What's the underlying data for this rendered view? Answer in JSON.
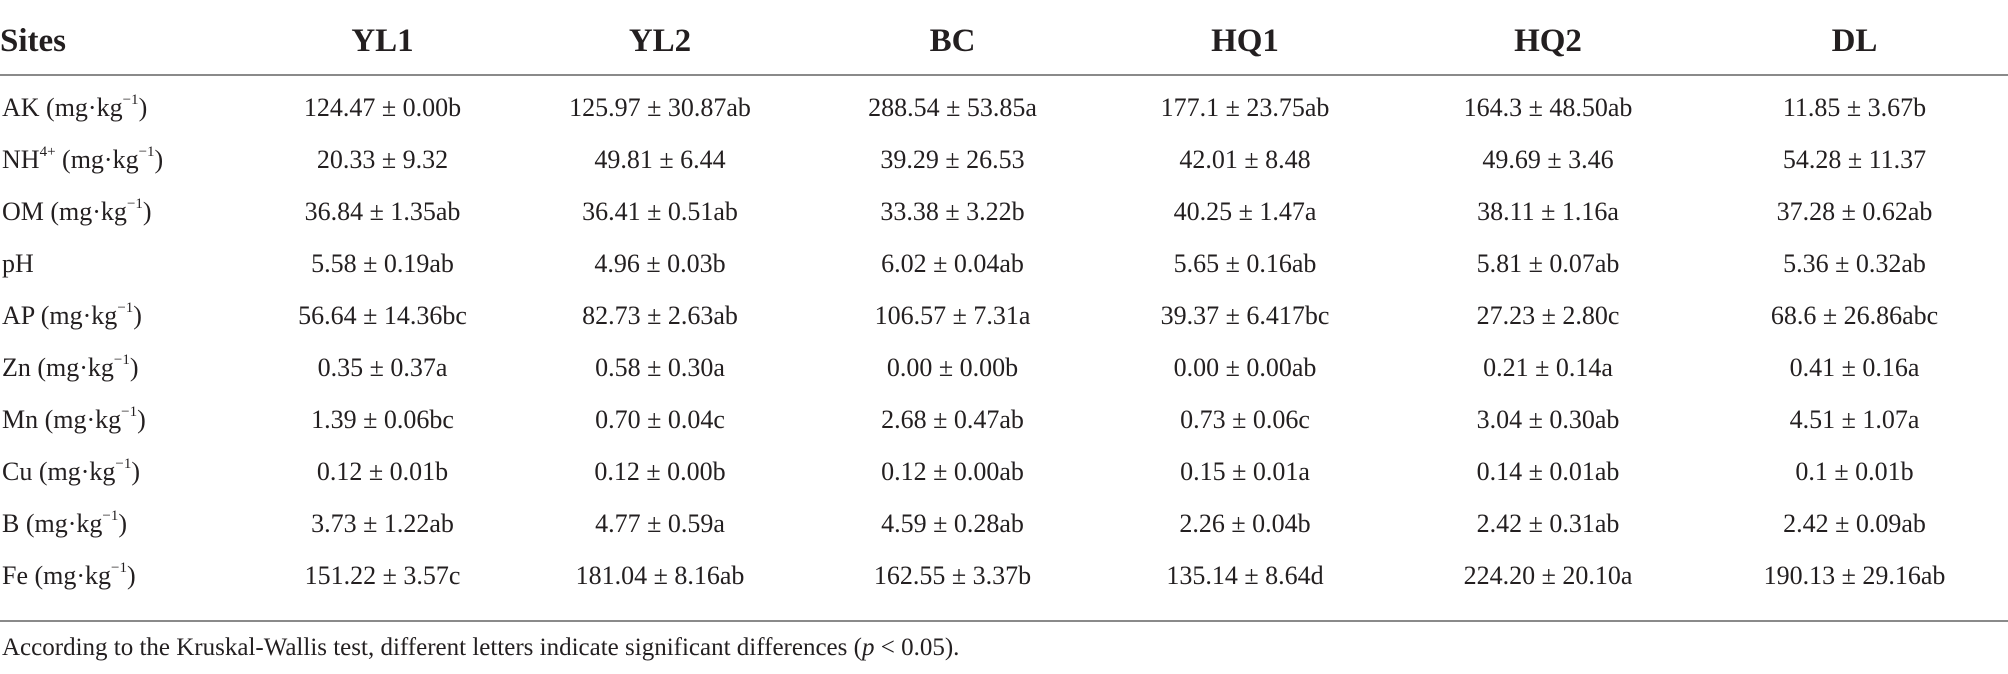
{
  "table": {
    "headers": [
      "Sites",
      "YL1",
      "YL2",
      "BC",
      "HQ1",
      "HQ2",
      "DL"
    ],
    "rows": [
      {
        "label_main": "AK (mg·kg",
        "label_sup": "−1",
        "label_tail": ")",
        "values": [
          "124.47 ± 0.00b",
          "125.97 ± 30.87ab",
          "288.54 ± 53.85a",
          "177.1 ± 23.75ab",
          "164.3 ± 48.50ab",
          "11.85 ± 3.67b"
        ]
      },
      {
        "label_main": "NH",
        "label_sup": "4+",
        "label_tail": " (mg·kg",
        "label_sup2": "−1",
        "label_tail2": ")",
        "values": [
          "20.33 ± 9.32",
          "49.81 ± 6.44",
          "39.29 ± 26.53",
          "42.01 ± 8.48",
          "49.69 ± 3.46",
          "54.28 ± 11.37"
        ]
      },
      {
        "label_main": "OM (mg·kg",
        "label_sup": "−1",
        "label_tail": ")",
        "values": [
          "36.84 ± 1.35ab",
          "36.41 ± 0.51ab",
          "33.38 ± 3.22b",
          "40.25 ± 1.47a",
          "38.11 ± 1.16a",
          "37.28 ± 0.62ab"
        ]
      },
      {
        "label_main": "pH",
        "label_sup": "",
        "label_tail": "",
        "values": [
          "5.58 ± 0.19ab",
          "4.96 ± 0.03b",
          "6.02 ± 0.04ab",
          "5.65 ± 0.16ab",
          "5.81 ± 0.07ab",
          "5.36 ± 0.32ab"
        ]
      },
      {
        "label_main": "AP (mg·kg",
        "label_sup": "−1",
        "label_tail": ")",
        "values": [
          "56.64 ± 14.36bc",
          "82.73 ± 2.63ab",
          "106.57 ± 7.31a",
          "39.37 ± 6.417bc",
          "27.23 ± 2.80c",
          "68.6 ± 26.86abc"
        ]
      },
      {
        "label_main": "Zn (mg·kg",
        "label_sup": "−1",
        "label_tail": ")",
        "values": [
          "0.35 ± 0.37a",
          "0.58 ± 0.30a",
          "0.00 ± 0.00b",
          "0.00 ± 0.00ab",
          "0.21 ± 0.14a",
          "0.41 ± 0.16a"
        ]
      },
      {
        "label_main": "Mn (mg·kg",
        "label_sup": "−1",
        "label_tail": ")",
        "values": [
          "1.39 ± 0.06bc",
          "0.70 ± 0.04c",
          "2.68 ± 0.47ab",
          "0.73 ± 0.06c",
          "3.04 ± 0.30ab",
          "4.51 ± 1.07a"
        ]
      },
      {
        "label_main": "Cu (mg·kg",
        "label_sup": "−1",
        "label_tail": ")",
        "values": [
          "0.12 ± 0.01b",
          "0.12 ± 0.00b",
          "0.12 ± 0.00ab",
          "0.15 ± 0.01a",
          "0.14 ± 0.01ab",
          "0.1 ± 0.01b"
        ]
      },
      {
        "label_main": "B (mg·kg",
        "label_sup": "−1",
        "label_tail": ")",
        "values": [
          "3.73 ± 1.22ab",
          "4.77 ± 0.59a",
          "4.59 ± 0.28ab",
          "2.26 ± 0.04b",
          "2.42 ± 0.31ab",
          "2.42 ± 0.09ab"
        ]
      },
      {
        "label_main": "Fe (mg·kg",
        "label_sup": "−1",
        "label_tail": ")",
        "values": [
          "151.22 ± 3.57c",
          "181.04 ± 8.16ab",
          "162.55 ± 3.37b",
          "135.14 ± 8.64d",
          "224.20 ± 20.10a",
          "190.13 ± 29.16ab"
        ]
      }
    ]
  },
  "footnote": {
    "before": "According to the Kruskal-Wallis test, different letters indicate significant differences (",
    "italic": "p",
    "after": " < 0.05)."
  }
}
